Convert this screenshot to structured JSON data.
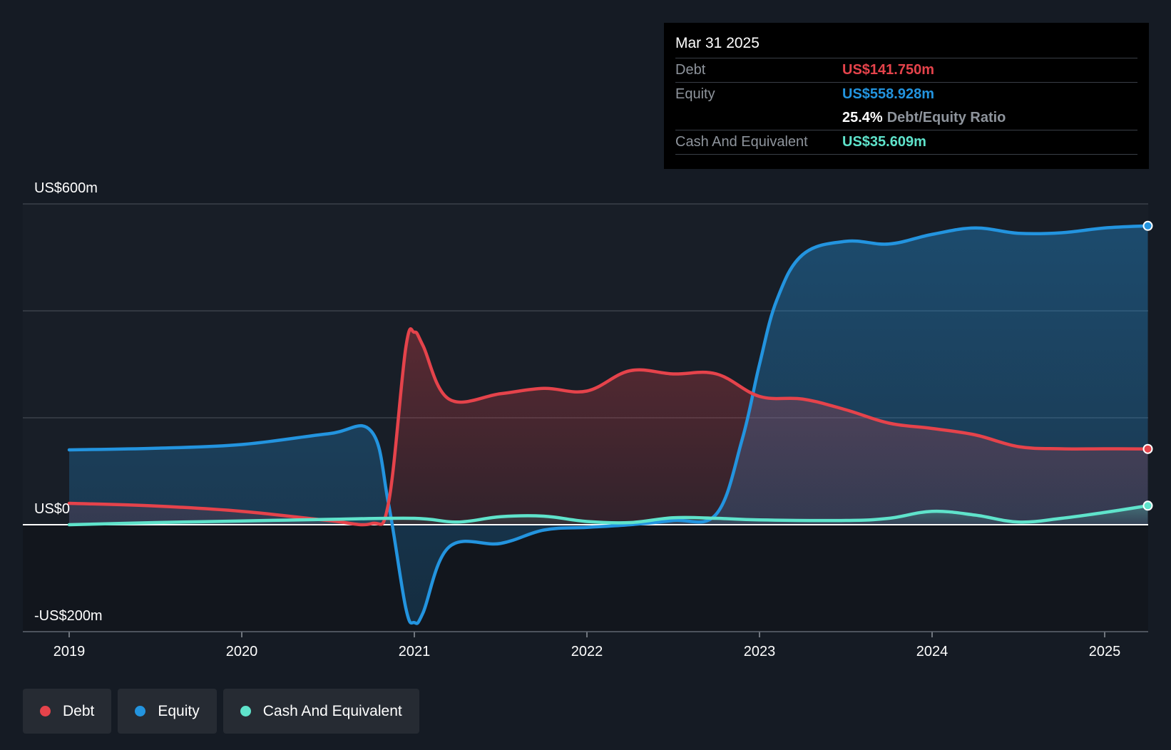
{
  "tooltip": {
    "date": "Mar 31 2025",
    "debt_label": "Debt",
    "debt_value": "US$141.750m",
    "equity_label": "Equity",
    "equity_value": "US$558.928m",
    "ratio_value": "25.4%",
    "ratio_label": "Debt/Equity Ratio",
    "cash_label": "Cash And Equivalent",
    "cash_value": "US$35.609m"
  },
  "legend": {
    "debt": "Debt",
    "equity": "Equity",
    "cash": "Cash And Equivalent"
  },
  "colors": {
    "debt": "#e5434b",
    "equity": "#2394df",
    "cash": "#5fe3cb",
    "background": "#151b24"
  },
  "chart_data": {
    "type": "area",
    "ylim": [
      -200,
      600
    ],
    "y_tick_labels": [
      "US$600m",
      "US$0",
      "-US$200m"
    ],
    "x_ticks": [
      2019,
      2020,
      2021,
      2022,
      2023,
      2024,
      2025
    ],
    "x_tick_labels": [
      "2019",
      "2020",
      "2021",
      "2022",
      "2023",
      "2024",
      "2025"
    ],
    "series": [
      {
        "name": "Debt",
        "points": [
          [
            2019.0,
            40
          ],
          [
            2019.5,
            35
          ],
          [
            2020.0,
            25
          ],
          [
            2020.5,
            8
          ],
          [
            2020.75,
            2
          ],
          [
            2020.85,
            40
          ],
          [
            2020.95,
            330
          ],
          [
            2021.0,
            360
          ],
          [
            2021.05,
            335
          ],
          [
            2021.2,
            235
          ],
          [
            2021.5,
            245
          ],
          [
            2021.75,
            255
          ],
          [
            2022.0,
            250
          ],
          [
            2022.25,
            288
          ],
          [
            2022.5,
            282
          ],
          [
            2022.75,
            282
          ],
          [
            2023.0,
            240
          ],
          [
            2023.25,
            235
          ],
          [
            2023.5,
            215
          ],
          [
            2023.75,
            190
          ],
          [
            2024.0,
            180
          ],
          [
            2024.25,
            168
          ],
          [
            2024.5,
            146
          ],
          [
            2024.75,
            142
          ],
          [
            2025.0,
            142
          ],
          [
            2025.25,
            141.75
          ]
        ]
      },
      {
        "name": "Equity",
        "points": [
          [
            2019.0,
            140
          ],
          [
            2019.5,
            143
          ],
          [
            2020.0,
            150
          ],
          [
            2020.5,
            170
          ],
          [
            2020.75,
            175
          ],
          [
            2020.85,
            40
          ],
          [
            2020.95,
            -155
          ],
          [
            2021.0,
            -183
          ],
          [
            2021.05,
            -165
          ],
          [
            2021.2,
            -42
          ],
          [
            2021.5,
            -35
          ],
          [
            2021.75,
            -10
          ],
          [
            2022.0,
            -5
          ],
          [
            2022.25,
            0
          ],
          [
            2022.5,
            8
          ],
          [
            2022.75,
            20
          ],
          [
            2022.9,
            160
          ],
          [
            2023.0,
            300
          ],
          [
            2023.1,
            420
          ],
          [
            2023.25,
            505
          ],
          [
            2023.5,
            530
          ],
          [
            2023.75,
            525
          ],
          [
            2024.0,
            543
          ],
          [
            2024.25,
            555
          ],
          [
            2024.5,
            545
          ],
          [
            2024.75,
            546
          ],
          [
            2025.0,
            555
          ],
          [
            2025.25,
            558.928
          ]
        ]
      },
      {
        "name": "Cash And Equivalent",
        "points": [
          [
            2019.0,
            0
          ],
          [
            2019.5,
            4
          ],
          [
            2020.0,
            7
          ],
          [
            2020.5,
            10
          ],
          [
            2021.0,
            12
          ],
          [
            2021.25,
            5
          ],
          [
            2021.5,
            15
          ],
          [
            2021.75,
            16
          ],
          [
            2022.0,
            6
          ],
          [
            2022.25,
            4
          ],
          [
            2022.5,
            13
          ],
          [
            2022.75,
            12
          ],
          [
            2023.0,
            9
          ],
          [
            2023.5,
            8
          ],
          [
            2023.75,
            12
          ],
          [
            2024.0,
            25
          ],
          [
            2024.25,
            18
          ],
          [
            2024.5,
            5
          ],
          [
            2024.75,
            12
          ],
          [
            2025.0,
            23
          ],
          [
            2025.25,
            35.609
          ]
        ]
      }
    ]
  }
}
